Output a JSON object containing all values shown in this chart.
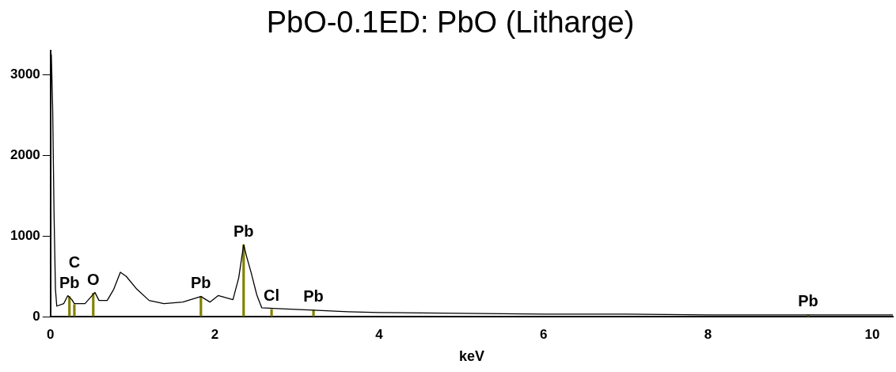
{
  "chart_data": {
    "type": "line",
    "title": "PbO-0.1ED: PbO (Litharge)",
    "xlabel": "keV",
    "series": [
      {
        "color": "#000000",
        "x": [
          0.01,
          0.026,
          0.043,
          0.06,
          0.076,
          0.16,
          0.21,
          0.26,
          0.29,
          0.42,
          0.54,
          0.59,
          0.69,
          0.77,
          0.85,
          0.92,
          1.05,
          1.2,
          1.38,
          1.61,
          1.83,
          1.94,
          2.04,
          2.22,
          2.29,
          2.35,
          2.39,
          2.44,
          2.51,
          2.57,
          2.76,
          3.2,
          3.62,
          4.0,
          5.0,
          6.0,
          7.0,
          8.0,
          9.0,
          10.0,
          10.25
        ],
        "values": [
          3250,
          2600,
          1270,
          340,
          130,
          160,
          260,
          210,
          160,
          160,
          300,
          200,
          200,
          340,
          550,
          500,
          340,
          200,
          160,
          180,
          250,
          180,
          260,
          210,
          480,
          890,
          730,
          550,
          270,
          110,
          100,
          80,
          60,
          50,
          40,
          30,
          30,
          20,
          20,
          20,
          20
        ]
      },
      {
        "type": "bar",
        "color": "#808000",
        "x": [
          0.23,
          0.29,
          0.52,
          1.83,
          2.35,
          2.69,
          3.2,
          9.22
        ],
        "values": [
          250,
          150,
          290,
          250,
          890,
          90,
          80,
          20
        ]
      }
    ],
    "xlim": [
      0,
      10.25
    ],
    "xticks": [
      0,
      2,
      4,
      6,
      8,
      10
    ],
    "ylim": [
      0,
      3300
    ],
    "yticks": [
      0,
      1000,
      2000,
      3000
    ],
    "grid": false,
    "legend": false,
    "marker": "none",
    "line_style": "solid",
    "annotations": [
      {
        "text": "Pb",
        "x": 0.23,
        "y": 250
      },
      {
        "text": "C",
        "x": 0.29,
        "y": 150
      },
      {
        "text": "O",
        "x": 0.52,
        "y": 290
      },
      {
        "text": "Pb",
        "x": 1.83,
        "y": 250
      },
      {
        "text": "Pb",
        "x": 2.35,
        "y": 890
      },
      {
        "text": "Cl",
        "x": 2.69,
        "y": 90
      },
      {
        "text": "Pb",
        "x": 3.2,
        "y": 80
      },
      {
        "text": "Pb",
        "x": 9.22,
        "y": 20
      }
    ]
  }
}
